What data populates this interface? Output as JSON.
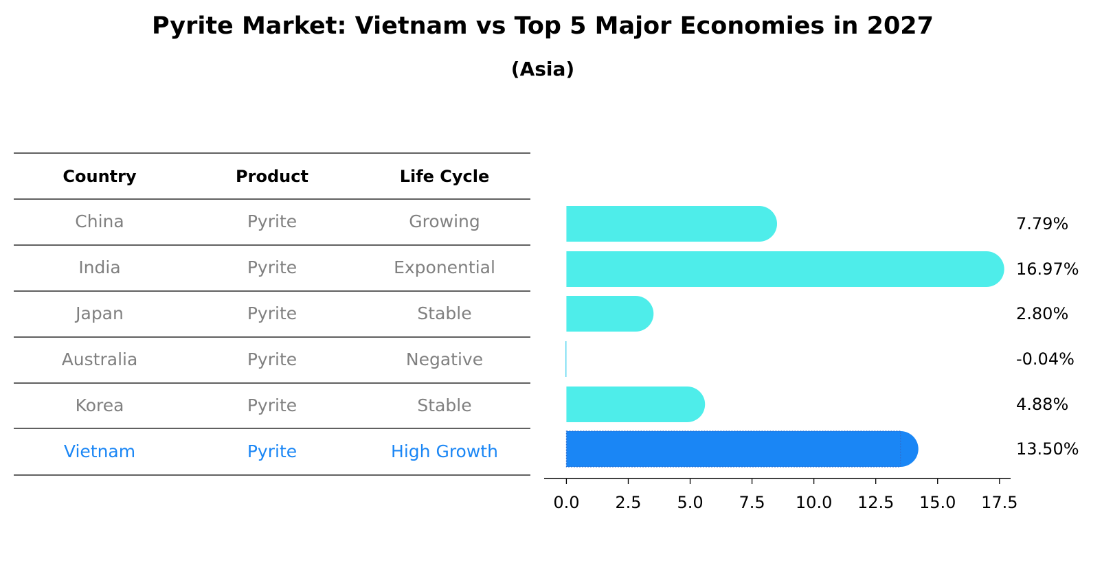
{
  "chart_data": {
    "type": "bar",
    "orientation": "horizontal",
    "title": "Pyrite Market: Vietnam vs Top 5 Major Economies in 2027",
    "subtitle": "(Asia)",
    "categories": [
      "China",
      "India",
      "Japan",
      "Australia",
      "Korea",
      "Vietnam"
    ],
    "values": [
      7.79,
      16.97,
      2.8,
      -0.04,
      4.88,
      13.5
    ],
    "value_labels": [
      "7.79%",
      "16.97%",
      "2.80%",
      "-0.04%",
      "4.88%",
      "13.50%"
    ],
    "x_ticks": [
      "0.0",
      "2.5",
      "5.0",
      "7.5",
      "10.0",
      "12.5",
      "15.0",
      "17.5"
    ],
    "x_tick_values": [
      0,
      2.5,
      5,
      7.5,
      10,
      12.5,
      15,
      17.5
    ],
    "xlim": [
      -0.9,
      17.95
    ],
    "xlabel": "",
    "ylabel": "",
    "highlight_category": "Vietnam",
    "colors": {
      "bar": "#4EEDEA",
      "highlight_bar": "#1A86F5",
      "negative_bar": "#5BD7F0",
      "muted_text": "#808080",
      "highlight_text": "#1A86F5",
      "rule": "#000000"
    }
  },
  "table": {
    "headers": [
      "Country",
      "Product",
      "Life Cycle"
    ],
    "rows": [
      [
        "China",
        "Pyrite",
        "Growing"
      ],
      [
        "India",
        "Pyrite",
        "Exponential"
      ],
      [
        "Japan",
        "Pyrite",
        "Stable"
      ],
      [
        "Australia",
        "Pyrite",
        "Negative"
      ],
      [
        "Korea",
        "Pyrite",
        "Stable"
      ],
      [
        "Vietnam",
        "Pyrite",
        "High Growth"
      ]
    ],
    "highlight_row_index": 5
  }
}
